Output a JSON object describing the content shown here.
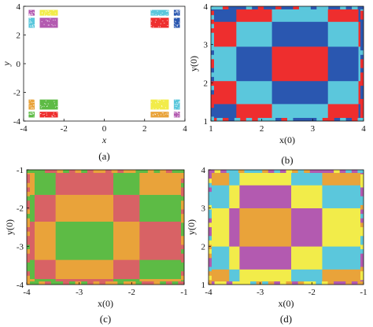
{
  "colors": {
    "red": "#ee2e2e",
    "blue": "#2a57b0",
    "cyan": "#5bc7dc",
    "yellow": "#f2ec4a",
    "purple": "#b35ab0",
    "orange": "#e9a33a",
    "green": "#5dbb45",
    "rose": "#d86265",
    "axis": "#111111"
  },
  "chart_data": [
    {
      "id": "a",
      "type": "scatter",
      "caption": "(a)",
      "xlabel": "x",
      "ylabel": "y",
      "xlim": [
        -4,
        4
      ],
      "ylim": [
        -4,
        4
      ],
      "xticks": [
        -4,
        -2,
        0,
        2,
        4
      ],
      "yticks": [
        -4,
        -2,
        0,
        2,
        4
      ],
      "xtick_labels": [
        "-4",
        "-2",
        "0",
        "2",
        "4"
      ],
      "ytick_labels": [
        "-4",
        "-2",
        "0",
        "2",
        "4"
      ],
      "grid": false,
      "patches": [
        {
          "color": "purple",
          "x": [
            -3.75,
            -3.45
          ],
          "y": [
            3.35,
            3.75
          ]
        },
        {
          "color": "yellow",
          "x": [
            -3.2,
            -2.3
          ],
          "y": [
            3.35,
            3.75
          ]
        },
        {
          "color": "cyan",
          "x": [
            -3.75,
            -3.45
          ],
          "y": [
            2.5,
            3.2
          ]
        },
        {
          "color": "purple",
          "x": [
            -3.2,
            -2.3
          ],
          "y": [
            2.5,
            3.2
          ]
        },
        {
          "color": "cyan",
          "x": [
            2.3,
            3.2
          ],
          "y": [
            3.35,
            3.75
          ]
        },
        {
          "color": "blue",
          "x": [
            3.45,
            3.75
          ],
          "y": [
            3.35,
            3.75
          ]
        },
        {
          "color": "red",
          "x": [
            2.3,
            3.2
          ],
          "y": [
            2.5,
            3.2
          ]
        },
        {
          "color": "blue",
          "x": [
            3.45,
            3.75
          ],
          "y": [
            2.5,
            3.2
          ]
        },
        {
          "color": "orange",
          "x": [
            -3.75,
            -3.45
          ],
          "y": [
            -3.2,
            -2.5
          ]
        },
        {
          "color": "green",
          "x": [
            -3.2,
            -2.3
          ],
          "y": [
            -3.2,
            -2.5
          ]
        },
        {
          "color": "green",
          "x": [
            -3.75,
            -3.45
          ],
          "y": [
            -3.75,
            -3.35
          ]
        },
        {
          "color": "red",
          "x": [
            -3.2,
            -2.3
          ],
          "y": [
            -3.75,
            -3.35
          ]
        },
        {
          "color": "yellow",
          "x": [
            2.3,
            3.2
          ],
          "y": [
            -3.2,
            -2.5
          ]
        },
        {
          "color": "cyan",
          "x": [
            3.45,
            3.75
          ],
          "y": [
            -3.2,
            -2.5
          ]
        },
        {
          "color": "orange",
          "x": [
            2.3,
            3.2
          ],
          "y": [
            -3.75,
            -3.35
          ]
        },
        {
          "color": "purple",
          "x": [
            3.45,
            3.75
          ],
          "y": [
            -3.75,
            -3.35
          ]
        }
      ]
    },
    {
      "id": "b",
      "type": "heatmap",
      "caption": "(b)",
      "xlabel": "x(0)",
      "ylabel": "y(0)",
      "xlim": [
        1,
        4
      ],
      "ylim": [
        1,
        4
      ],
      "xticks": [
        1,
        2,
        3,
        4
      ],
      "yticks": [
        1,
        2,
        3,
        4
      ],
      "xtick_labels": [
        "1",
        "2",
        "3",
        "4"
      ],
      "ytick_labels": [
        "1",
        "2",
        "3",
        "4"
      ],
      "basin_colors": [
        "red",
        "blue",
        "cyan"
      ],
      "x_bands": [
        {
          "range": [
            1.0,
            1.5
          ],
          "c": 2
        },
        {
          "range": [
            1.5,
            2.2
          ],
          "c": 1
        },
        {
          "range": [
            2.2,
            3.3
          ],
          "c": 0
        },
        {
          "range": [
            3.3,
            3.9
          ],
          "c": 1
        },
        {
          "range": [
            3.9,
            4.0
          ],
          "c": 2
        }
      ],
      "y_bands": [
        {
          "range": [
            1.0,
            1.45
          ],
          "c": 2
        },
        {
          "range": [
            1.45,
            2.05
          ],
          "c": 1
        },
        {
          "range": [
            2.05,
            2.95
          ],
          "c": 0
        },
        {
          "range": [
            2.95,
            3.6
          ],
          "c": 1
        },
        {
          "range": [
            3.6,
            4.0
          ],
          "c": 2
        }
      ]
    },
    {
      "id": "c",
      "type": "heatmap",
      "caption": "(c)",
      "xlabel": "x(0)",
      "ylabel": "y(0)",
      "xlim": [
        -4,
        -1
      ],
      "ylim": [
        -4,
        -1
      ],
      "xticks": [
        -4,
        -3,
        -2,
        -1
      ],
      "yticks": [
        -4,
        -3,
        -2,
        -1
      ],
      "xtick_labels": [
        "-4",
        "-3",
        "-2",
        "-1"
      ],
      "ytick_labels": [
        "-4",
        "-3",
        "-2",
        "-1"
      ],
      "basin_colors": [
        "green",
        "orange",
        "rose"
      ],
      "x_bands": [
        {
          "range": [
            -4.0,
            -3.85
          ],
          "c": 2
        },
        {
          "range": [
            -3.85,
            -3.45
          ],
          "c": 1
        },
        {
          "range": [
            -3.45,
            -2.35
          ],
          "c": 0
        },
        {
          "range": [
            -2.35,
            -1.85
          ],
          "c": 1
        },
        {
          "range": [
            -1.85,
            -1.0
          ],
          "c": 2
        }
      ],
      "y_bands": [
        {
          "range": [
            -4.0,
            -3.85
          ],
          "c": 2
        },
        {
          "range": [
            -3.85,
            -3.35
          ],
          "c": 1
        },
        {
          "range": [
            -3.35,
            -2.35
          ],
          "c": 0
        },
        {
          "range": [
            -2.35,
            -1.65
          ],
          "c": 1
        },
        {
          "range": [
            -1.65,
            -1.0
          ],
          "c": 2
        }
      ]
    },
    {
      "id": "d",
      "type": "heatmap",
      "caption": "(d)",
      "xlabel": "x(0)",
      "ylabel": "y(0)",
      "xlim": [
        -4,
        -1
      ],
      "ylim": [
        1,
        4
      ],
      "xticks": [
        -4,
        -3,
        -2,
        -1
      ],
      "yticks": [
        1,
        2,
        3,
        4
      ],
      "xtick_labels": [
        "-4",
        "-3",
        "-2",
        "-1"
      ],
      "ytick_labels": [
        "1",
        "2",
        "3",
        "4"
      ],
      "basin_colors": [
        "orange",
        "purple",
        "yellow",
        "cyan"
      ],
      "x_bands": [
        {
          "range": [
            -4.0,
            -3.6
          ],
          "c": 2
        },
        {
          "range": [
            -3.6,
            -3.4
          ],
          "c": 1
        },
        {
          "range": [
            -3.4,
            -2.4
          ],
          "c": 0
        },
        {
          "range": [
            -2.4,
            -1.8
          ],
          "c": 1
        },
        {
          "range": [
            -1.8,
            -1.0
          ],
          "c": 2
        }
      ],
      "y_bands": [
        {
          "range": [
            1.0,
            1.4
          ],
          "c": 2
        },
        {
          "range": [
            1.4,
            2.0
          ],
          "c": 1
        },
        {
          "range": [
            2.0,
            3.0
          ],
          "c": 0
        },
        {
          "range": [
            3.0,
            3.6
          ],
          "c": 1
        },
        {
          "range": [
            3.6,
            4.0
          ],
          "c": 2
        }
      ]
    }
  ]
}
